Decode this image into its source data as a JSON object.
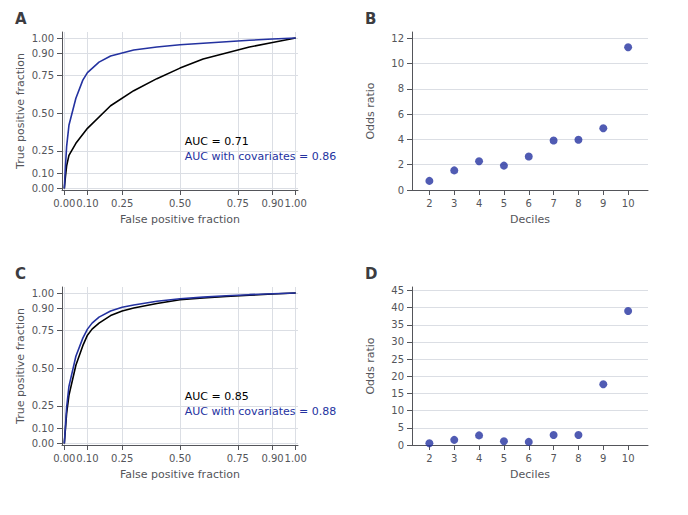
{
  "chart_data": [
    {
      "type": "line",
      "title": "A",
      "xlabel": "False positive fraction",
      "ylabel": "True positive fraction",
      "series": [
        {
          "color": "#000000",
          "x": [
            0,
            0.005,
            0.01,
            0.02,
            0.05,
            0.1,
            0.2,
            0.3,
            0.4,
            0.5,
            0.6,
            0.7,
            0.8,
            0.9,
            0.95,
            1.0
          ],
          "values": [
            0,
            0.08,
            0.15,
            0.22,
            0.3,
            0.4,
            0.55,
            0.65,
            0.73,
            0.8,
            0.86,
            0.9,
            0.94,
            0.97,
            0.985,
            1.0
          ]
        },
        {
          "color": "#2432a0",
          "x": [
            0,
            0.005,
            0.01,
            0.02,
            0.05,
            0.08,
            0.1,
            0.15,
            0.2,
            0.3,
            0.4,
            0.5,
            0.6,
            0.7,
            0.8,
            0.9,
            0.95,
            1.0
          ],
          "values": [
            0,
            0.15,
            0.28,
            0.42,
            0.6,
            0.72,
            0.77,
            0.84,
            0.88,
            0.92,
            0.94,
            0.955,
            0.965,
            0.975,
            0.985,
            0.993,
            0.997,
            1.0
          ]
        }
      ],
      "annotations": [
        {
          "text": "AUC = 0.71",
          "color": "#000000"
        },
        {
          "text": "AUC with covariates = 0.86",
          "color": "#2432a0"
        }
      ],
      "xlim": [
        -0.01,
        1.01
      ],
      "ylim": [
        -0.01,
        1.04
      ],
      "xticks": [
        {
          "value": 0.0,
          "label": "0.00"
        },
        {
          "value": 0.1,
          "label": "0.10"
        },
        {
          "value": 0.25,
          "label": "0.25"
        },
        {
          "value": 0.5,
          "label": "0.50"
        },
        {
          "value": 0.75,
          "label": "0.75"
        },
        {
          "value": 0.9,
          "label": "0.90"
        },
        {
          "value": 1.0,
          "label": "1.00"
        }
      ],
      "yticks": [
        {
          "value": 0.0,
          "label": "0.00"
        },
        {
          "value": 0.1,
          "label": "0.10"
        },
        {
          "value": 0.25,
          "label": "0.25"
        },
        {
          "value": 0.5,
          "label": "0.50"
        },
        {
          "value": 0.75,
          "label": "0.75"
        },
        {
          "value": 0.9,
          "label": "0.90"
        },
        {
          "value": 1.0,
          "label": "1.00"
        }
      ],
      "grid": true
    },
    {
      "type": "scatter",
      "title": "B",
      "xlabel": "Deciles",
      "ylabel": "Odds ratio",
      "x": [
        2,
        3,
        4,
        5,
        6,
        7,
        8,
        9,
        10
      ],
      "values": [
        0.72,
        1.55,
        2.28,
        1.93,
        2.65,
        3.92,
        3.98,
        4.88,
        11.3
      ],
      "color": "#2432a0",
      "xlim": [
        1.3,
        10.8
      ],
      "ylim": [
        0,
        12.5
      ],
      "xticks": [
        2,
        3,
        4,
        5,
        6,
        7,
        8,
        9,
        10
      ],
      "yticks": [
        0,
        2,
        4,
        6,
        8,
        10,
        12
      ],
      "grid": "y"
    },
    {
      "type": "line",
      "title": "C",
      "xlabel": "False positive fraction",
      "ylabel": "True positive fraction",
      "series": [
        {
          "color": "#000000",
          "x": [
            0,
            0.005,
            0.01,
            0.02,
            0.05,
            0.08,
            0.1,
            0.12,
            0.15,
            0.2,
            0.25,
            0.3,
            0.4,
            0.5,
            0.6,
            0.7,
            0.8,
            0.9,
            1.0
          ],
          "values": [
            0,
            0.1,
            0.2,
            0.32,
            0.52,
            0.65,
            0.72,
            0.76,
            0.8,
            0.85,
            0.88,
            0.9,
            0.93,
            0.955,
            0.967,
            0.977,
            0.985,
            0.993,
            1.0
          ]
        },
        {
          "color": "#2432a0",
          "x": [
            0,
            0.005,
            0.01,
            0.02,
            0.05,
            0.08,
            0.1,
            0.12,
            0.15,
            0.2,
            0.25,
            0.3,
            0.4,
            0.5,
            0.6,
            0.7,
            0.8,
            0.9,
            1.0
          ],
          "values": [
            0,
            0.12,
            0.24,
            0.38,
            0.58,
            0.7,
            0.76,
            0.8,
            0.84,
            0.88,
            0.905,
            0.92,
            0.945,
            0.962,
            0.973,
            0.982,
            0.989,
            0.995,
            1.0
          ]
        }
      ],
      "annotations": [
        {
          "text": "AUC = 0.85",
          "color": "#000000"
        },
        {
          "text": "AUC with covariates = 0.88",
          "color": "#2432a0"
        }
      ],
      "xlim": [
        -0.01,
        1.01
      ],
      "ylim": [
        -0.01,
        1.04
      ],
      "xticks": [
        {
          "value": 0.0,
          "label": "0.00"
        },
        {
          "value": 0.1,
          "label": "0.10"
        },
        {
          "value": 0.25,
          "label": "0.25"
        },
        {
          "value": 0.5,
          "label": "0.50"
        },
        {
          "value": 0.75,
          "label": "0.75"
        },
        {
          "value": 0.9,
          "label": "0.90"
        },
        {
          "value": 1.0,
          "label": "1.00"
        }
      ],
      "yticks": [
        {
          "value": 0.0,
          "label": "0.00"
        },
        {
          "value": 0.1,
          "label": "0.10"
        },
        {
          "value": 0.25,
          "label": "0.25"
        },
        {
          "value": 0.5,
          "label": "0.50"
        },
        {
          "value": 0.75,
          "label": "0.75"
        },
        {
          "value": 0.9,
          "label": "0.90"
        },
        {
          "value": 1.0,
          "label": "1.00"
        }
      ],
      "grid": true
    },
    {
      "type": "scatter",
      "title": "D",
      "xlabel": "Deciles",
      "ylabel": "Odds ratio",
      "x": [
        2,
        3,
        4,
        5,
        6,
        7,
        8,
        9,
        10
      ],
      "values": [
        0.5,
        1.5,
        2.8,
        1.1,
        0.9,
        2.9,
        2.9,
        17.7,
        39.0
      ],
      "color": "#2432a0",
      "xlim": [
        1.3,
        10.8
      ],
      "ylim": [
        0,
        46
      ],
      "xticks": [
        2,
        3,
        4,
        5,
        6,
        7,
        8,
        9,
        10
      ],
      "yticks": [
        0,
        5,
        10,
        15,
        20,
        25,
        30,
        35,
        40,
        45
      ],
      "grid": "y"
    }
  ]
}
